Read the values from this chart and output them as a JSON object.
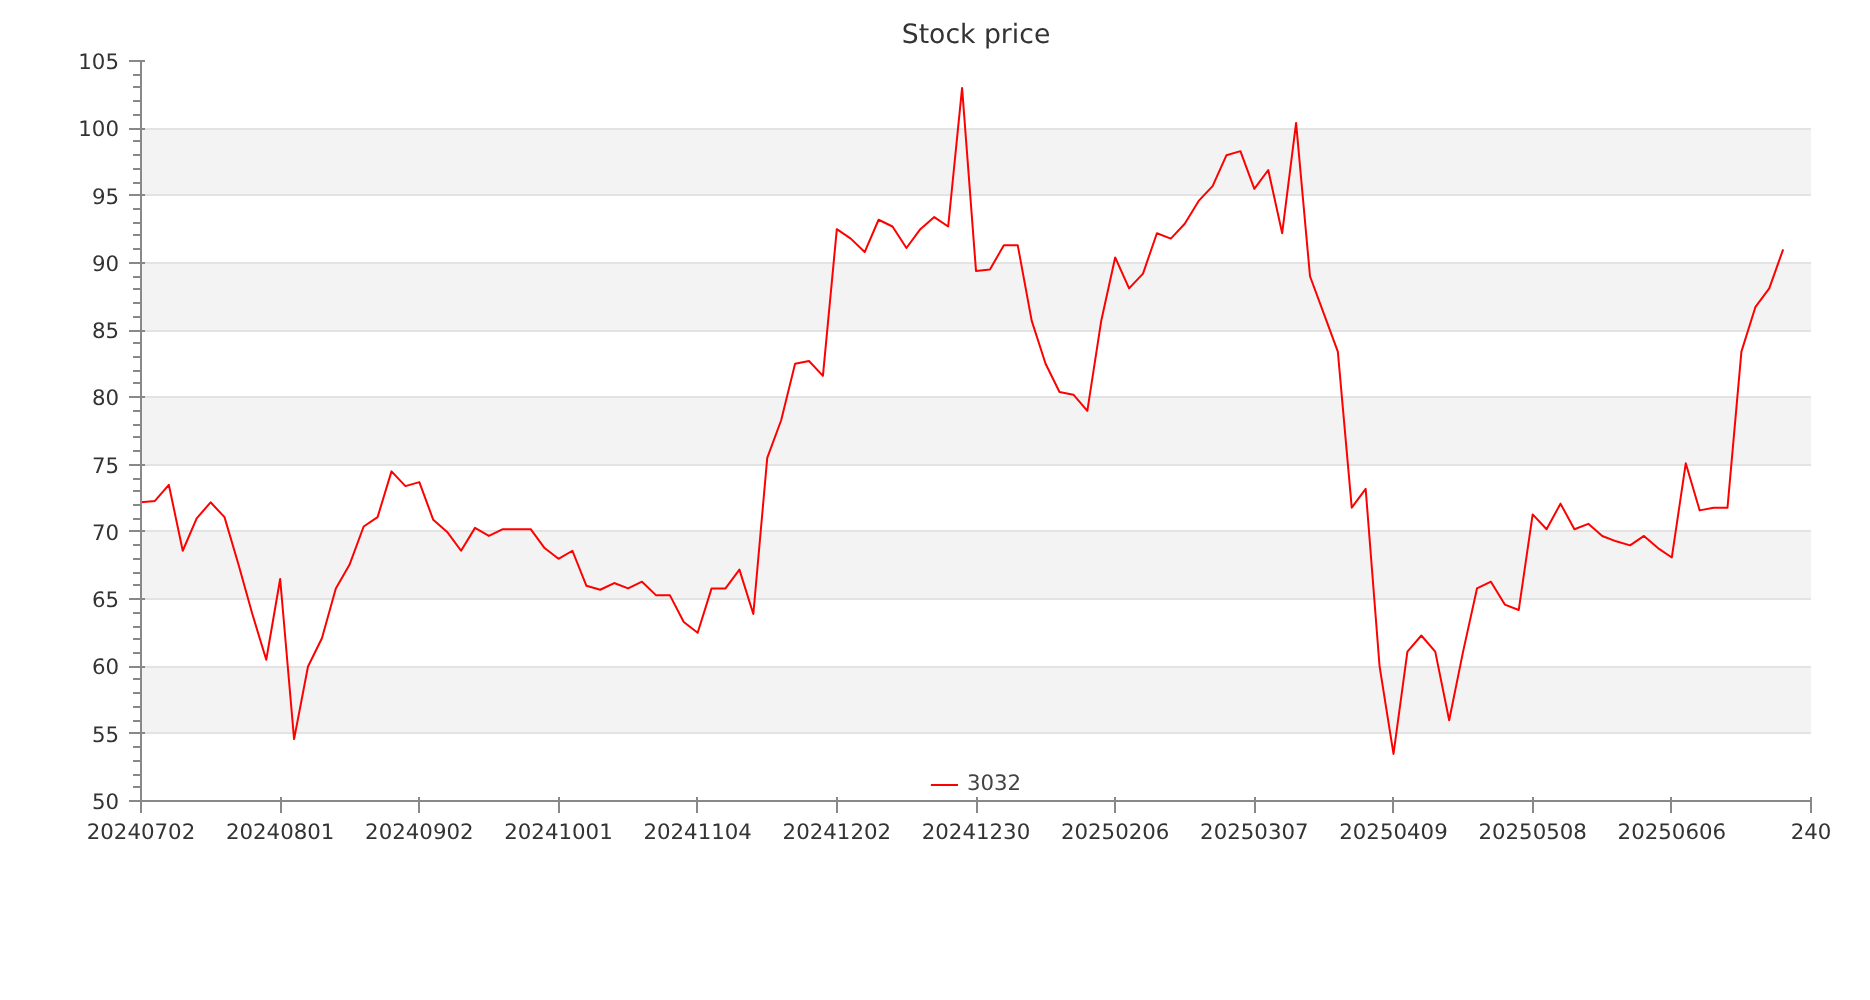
{
  "chart_data": {
    "type": "line",
    "title": "Stock price",
    "categories": [
      "20240702",
      null,
      null,
      null,
      null,
      null,
      null,
      null,
      null,
      null,
      "20240801",
      null,
      null,
      null,
      null,
      null,
      null,
      null,
      null,
      null,
      "20240902",
      null,
      null,
      null,
      null,
      null,
      null,
      null,
      null,
      null,
      "20241001",
      null,
      null,
      null,
      null,
      null,
      null,
      null,
      null,
      null,
      "20241104",
      null,
      null,
      null,
      null,
      null,
      null,
      null,
      null,
      null,
      "20241202",
      null,
      null,
      null,
      null,
      null,
      null,
      null,
      null,
      null,
      "20241230",
      null,
      null,
      null,
      null,
      null,
      null,
      null,
      null,
      null,
      "20250206",
      null,
      null,
      null,
      null,
      null,
      null,
      null,
      null,
      null,
      "20250307",
      null,
      null,
      null,
      null,
      null,
      null,
      null,
      null,
      null,
      "20250409",
      null,
      null,
      null,
      null,
      null,
      null,
      null,
      null,
      null,
      "20250508",
      null,
      null,
      null,
      null,
      null,
      null,
      null,
      null,
      null,
      "20250606",
      null,
      null,
      null,
      null,
      null,
      null,
      null,
      null,
      null,
      "240"
    ],
    "series": [
      {
        "name": "3032",
        "color": "#ff0000",
        "values": [
          72.2,
          72.3,
          73.5,
          68.6,
          71.0,
          72.2,
          71.1,
          67.6,
          63.9,
          60.5,
          66.5,
          54.6,
          60.0,
          62.1,
          65.8,
          67.6,
          70.4,
          71.1,
          74.5,
          73.4,
          73.7,
          70.9,
          70.0,
          68.6,
          70.3,
          69.7,
          70.2,
          70.2,
          70.2,
          68.8,
          68.0,
          68.6,
          66.0,
          65.7,
          66.2,
          65.8,
          66.3,
          65.3,
          65.3,
          63.3,
          62.5,
          65.8,
          65.8,
          67.2,
          63.9,
          75.5,
          78.3,
          82.5,
          82.7,
          81.6,
          92.5,
          91.8,
          90.8,
          93.2,
          92.7,
          91.1,
          92.5,
          93.4,
          92.7,
          103.0,
          89.4,
          89.5,
          91.3,
          91.3,
          85.7,
          82.5,
          80.4,
          80.2,
          79.0,
          85.7,
          90.4,
          88.1,
          89.2,
          92.2,
          91.8,
          92.9,
          94.6,
          95.7,
          98.0,
          98.3,
          95.5,
          96.9,
          92.2,
          100.4,
          89.0,
          86.2,
          83.4,
          71.8,
          73.2,
          60.0,
          53.5,
          61.1,
          62.3,
          61.1,
          56.0,
          61.1,
          65.8,
          66.3,
          64.6,
          64.2,
          71.3,
          70.2,
          72.1,
          70.2,
          70.6,
          69.7,
          69.3,
          69.0,
          69.7,
          68.8,
          68.1,
          75.1,
          71.6,
          71.8,
          71.8,
          83.4,
          86.7,
          88.1,
          91.0,
          null,
          null
        ]
      }
    ],
    "ylim": [
      50,
      105
    ],
    "yticks": [
      50,
      55,
      60,
      65,
      70,
      75,
      80,
      85,
      90,
      95,
      100,
      105
    ],
    "grid": "y",
    "legend": "bottom"
  }
}
